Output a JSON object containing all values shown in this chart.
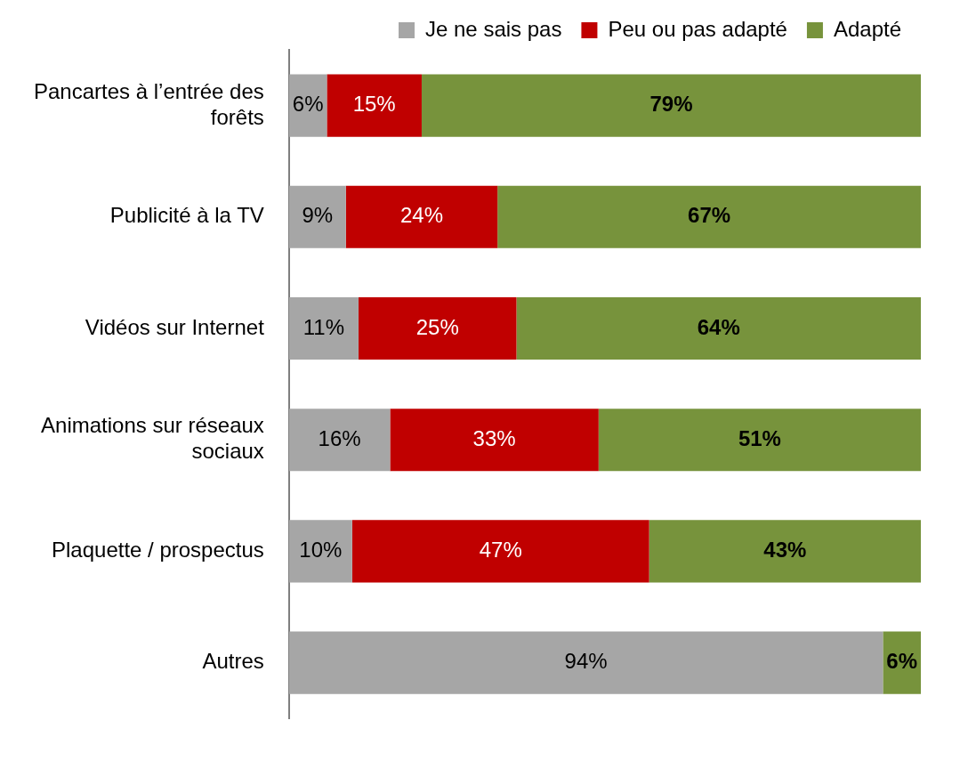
{
  "chart_data": {
    "type": "bar",
    "orientation": "horizontal",
    "stacked": true,
    "categories": [
      "Pancartes à l’entrée des forêts",
      "Publicité à la TV",
      "Vidéos sur Internet",
      "Animations sur réseaux sociaux",
      "Plaquette / prospectus",
      "Autres"
    ],
    "series": [
      {
        "name": "Je ne sais pas",
        "color": "#a6a6a6",
        "values": [
          6,
          9,
          11,
          16,
          10,
          94
        ],
        "value_labels": [
          "6%",
          "9%",
          "11%",
          "16%",
          "10%",
          "94%"
        ]
      },
      {
        "name": "Peu ou pas adapté",
        "color": "#c00000",
        "values": [
          15,
          24,
          25,
          33,
          47,
          null
        ],
        "value_labels": [
          "15%",
          "24%",
          "25%",
          "33%",
          "47%",
          null
        ]
      },
      {
        "name": "Adapté",
        "color": "#77933c",
        "values": [
          79,
          67,
          64,
          51,
          43,
          6
        ],
        "value_labels": [
          "79%",
          "67%",
          "64%",
          "51%",
          "43%",
          "6%"
        ]
      }
    ],
    "xlim": [
      0,
      100
    ],
    "tick_labels": "y",
    "legend": "top right"
  }
}
